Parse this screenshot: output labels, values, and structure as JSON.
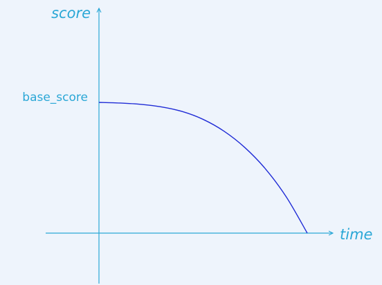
{
  "chart_data": {
    "type": "line",
    "title": "",
    "xlabel": "time",
    "ylabel": "score",
    "yticks": [
      "base_score"
    ],
    "series": [
      {
        "name": "",
        "color": "#1f2bd6",
        "x": [
          0,
          0.1,
          0.2,
          0.3,
          0.4,
          0.5,
          0.6,
          0.7,
          0.8,
          0.9,
          1.0
        ],
        "y": [
          1.0,
          0.995,
          0.985,
          0.965,
          0.93,
          0.87,
          0.78,
          0.655,
          0.49,
          0.275,
          0.0
        ]
      }
    ],
    "xlim": [
      0,
      1
    ],
    "ylim": [
      0,
      1
    ],
    "grid": false,
    "axis_color": "#2aa7d6"
  }
}
